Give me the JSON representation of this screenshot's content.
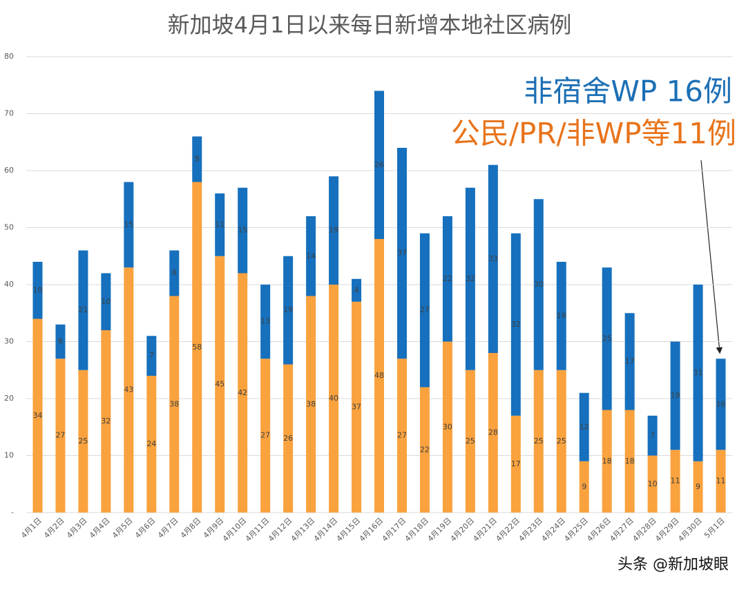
{
  "chart_data": {
    "type": "stacked_bar",
    "title": "新加坡4月1日以来每日新增本地社区病例",
    "categories": [
      "4月1日",
      "4月2日",
      "4月3日",
      "4月4日",
      "4月5日",
      "4月6日",
      "4月7日",
      "4月8日",
      "4月9日",
      "4月10日",
      "4月11日",
      "4月12日",
      "4月13日",
      "4月14日",
      "4月15日",
      "4月16日",
      "4月17日",
      "4月18日",
      "4月19日",
      "4月20日",
      "4月21日",
      "4月22日",
      "4月23日",
      "4月24日",
      "4月25日",
      "4月26日",
      "4月27日",
      "4月28日",
      "4月29日",
      "4月30日",
      "5月1日"
    ],
    "series": [
      {
        "color": "#f9a23e",
        "values": [
          34,
          27,
          25,
          32,
          43,
          24,
          38,
          58,
          45,
          42,
          27,
          26,
          38,
          40,
          37,
          48,
          27,
          22,
          30,
          25,
          28,
          17,
          25,
          25,
          9,
          18,
          18,
          10,
          11,
          9,
          11
        ]
      },
      {
        "color": "#1670bd",
        "values": [
          10,
          6,
          21,
          10,
          15,
          7,
          8,
          8,
          11,
          15,
          13,
          19,
          14,
          19,
          4,
          26,
          37,
          27,
          22,
          32,
          33,
          32,
          30,
          19,
          12,
          25,
          17,
          7,
          19,
          31,
          16
        ]
      }
    ],
    "ylim": [
      0,
      80
    ],
    "yticks": [
      {
        "value": 0,
        "label": "-"
      },
      10,
      20,
      30,
      40,
      50,
      60,
      70,
      80
    ],
    "grid": true,
    "annotations": [
      "非宿舍WP 16例",
      "公民/PR/非WP等11例"
    ],
    "annotation_colors": [
      "#1c6fb5",
      "#e8731a"
    ],
    "footer": "头条 @新加坡眼"
  }
}
